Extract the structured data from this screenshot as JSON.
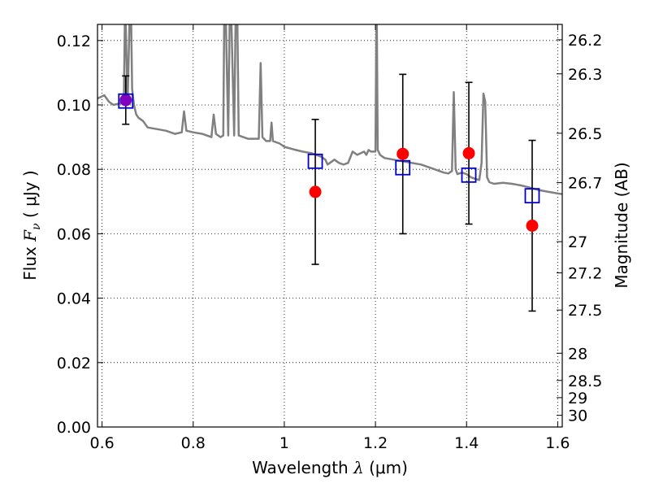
{
  "chart_data": {
    "type": "scatter",
    "xlabel": {
      "prefix": "Wavelength ",
      "symbol": "λ",
      "unit": " (μm)"
    },
    "ylabel": {
      "prefix": "Flux ",
      "symbol": "F",
      "subscript": "ν",
      "unit": " ( μJy )"
    },
    "ylabel_right": "Magnitude (AB)",
    "xlim": [
      0.59,
      1.61
    ],
    "ylim": [
      0.0,
      0.125
    ],
    "x_ticks": [
      {
        "value": 0.6,
        "label": "0.6"
      },
      {
        "value": 0.8,
        "label": "0.8"
      },
      {
        "value": 1.0,
        "label": "1"
      },
      {
        "value": 1.2,
        "label": "1.2"
      },
      {
        "value": 1.4,
        "label": "1.4"
      },
      {
        "value": 1.6,
        "label": "1.6"
      }
    ],
    "y_ticks": [
      {
        "value": 0.0,
        "label": "0.00"
      },
      {
        "value": 0.02,
        "label": "0.02"
      },
      {
        "value": 0.04,
        "label": "0.04"
      },
      {
        "value": 0.06,
        "label": "0.06"
      },
      {
        "value": 0.08,
        "label": "0.08"
      },
      {
        "value": 0.1,
        "label": "0.10"
      },
      {
        "value": 0.12,
        "label": "0.12"
      }
    ],
    "mag_ticks": [
      "26.2",
      "26.3",
      "26.5",
      "26.7",
      "27",
      "27.2",
      "27.5",
      "28",
      "28.5",
      "29",
      "30"
    ],
    "grid": true,
    "grid_style": "dotted",
    "colors": {
      "model": "#808080",
      "observed": "#ff0000",
      "synthetic": "#0000cc",
      "errorbar": "#000000",
      "overlap": "#8000c0"
    },
    "model_spectrum": {
      "x": [
        0.59,
        0.605,
        0.615,
        0.625,
        0.64,
        0.648,
        0.65,
        0.652,
        0.656,
        0.66,
        0.664,
        0.666,
        0.67,
        0.675,
        0.68,
        0.69,
        0.7,
        0.72,
        0.74,
        0.76,
        0.775,
        0.78,
        0.785,
        0.8,
        0.82,
        0.84,
        0.845,
        0.85,
        0.86,
        0.866,
        0.868,
        0.872,
        0.877,
        0.88,
        0.884,
        0.89,
        0.893,
        0.897,
        0.9,
        0.92,
        0.944,
        0.948,
        0.952,
        0.96,
        0.969,
        0.972,
        0.975,
        0.99,
        1.0,
        1.02,
        1.04,
        1.06,
        1.08,
        1.09,
        1.095,
        1.1,
        1.11,
        1.12,
        1.13,
        1.14,
        1.15,
        1.16,
        1.175,
        1.18,
        1.185,
        1.19,
        1.2,
        1.202,
        1.203,
        1.205,
        1.21,
        1.22,
        1.24,
        1.26,
        1.28,
        1.3,
        1.32,
        1.35,
        1.36,
        1.368,
        1.372,
        1.376,
        1.38,
        1.39,
        1.4,
        1.41,
        1.42,
        1.428,
        1.433,
        1.437,
        1.441,
        1.445,
        1.45,
        1.46,
        1.48,
        1.5,
        1.52,
        1.54,
        1.56,
        1.58,
        1.6,
        1.61
      ],
      "y": [
        0.102,
        0.103,
        0.101,
        0.1,
        0.1005,
        0.102,
        0.125,
        0.125,
        0.1,
        0.125,
        0.125,
        0.105,
        0.1,
        0.097,
        0.096,
        0.095,
        0.093,
        0.0925,
        0.092,
        0.091,
        0.0915,
        0.098,
        0.092,
        0.0915,
        0.091,
        0.09,
        0.097,
        0.091,
        0.09,
        0.0905,
        0.125,
        0.125,
        0.0905,
        0.125,
        0.125,
        0.0905,
        0.125,
        0.125,
        0.0905,
        0.0895,
        0.0895,
        0.113,
        0.09,
        0.0888,
        0.0888,
        0.0945,
        0.0888,
        0.088,
        0.087,
        0.0862,
        0.0855,
        0.085,
        0.084,
        0.083,
        0.0815,
        0.082,
        0.083,
        0.082,
        0.0815,
        0.082,
        0.0855,
        0.0845,
        0.0855,
        0.0845,
        0.086,
        0.0855,
        0.0855,
        0.125,
        0.125,
        0.086,
        0.0845,
        0.0835,
        0.083,
        0.0825,
        0.082,
        0.0815,
        0.0805,
        0.079,
        0.0787,
        0.0795,
        0.104,
        0.08,
        0.0785,
        0.079,
        0.0785,
        0.0775,
        0.077,
        0.0767,
        0.082,
        0.1035,
        0.101,
        0.0775,
        0.076,
        0.0755,
        0.0758,
        0.0755,
        0.075,
        0.0743,
        0.0735,
        0.073,
        0.0725,
        0.0723
      ]
    },
    "observed_points": [
      {
        "x": 0.652,
        "y": 0.1015,
        "yerr_low": 0.094,
        "yerr_high": 0.109
      },
      {
        "x": 1.068,
        "y": 0.073,
        "yerr_low": 0.0505,
        "yerr_high": 0.0955
      },
      {
        "x": 1.26,
        "y": 0.0848,
        "yerr_low": 0.06,
        "yerr_high": 0.1095
      },
      {
        "x": 1.405,
        "y": 0.085,
        "yerr_low": 0.063,
        "yerr_high": 0.107
      },
      {
        "x": 1.544,
        "y": 0.0625,
        "yerr_low": 0.036,
        "yerr_high": 0.089
      }
    ],
    "synthetic_points": [
      {
        "x": 0.652,
        "y": 0.1012
      },
      {
        "x": 1.068,
        "y": 0.0825
      },
      {
        "x": 1.26,
        "y": 0.0805
      },
      {
        "x": 1.405,
        "y": 0.0782
      },
      {
        "x": 1.544,
        "y": 0.0718
      }
    ]
  }
}
